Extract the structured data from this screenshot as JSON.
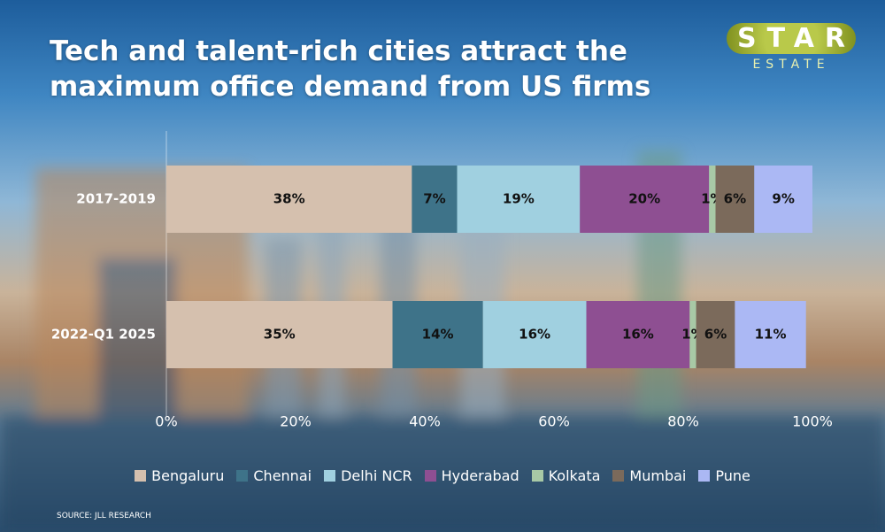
{
  "chart_data": {
    "type": "stacked_barh",
    "title": "Tech and talent-rich cities attract the maximum office demand from US firms",
    "logo": {
      "top": "STAR",
      "bottom": "ESTATE"
    },
    "source": "SOURCE: JLL RESEARCH",
    "categories": [
      "2017-2019",
      "2022-Q1 2025"
    ],
    "series": [
      {
        "name": "Bengaluru",
        "color": "#d5c0ae",
        "values": [
          38,
          35
        ],
        "value_labels": [
          "38%",
          "35%"
        ]
      },
      {
        "name": "Chennai",
        "color": "#3e7389",
        "values": [
          7,
          14
        ],
        "value_labels": [
          "7%",
          "14%"
        ]
      },
      {
        "name": "Delhi NCR",
        "color": "#a0d0e0",
        "values": [
          19,
          16
        ],
        "value_labels": [
          "19%",
          "16%"
        ]
      },
      {
        "name": "Hyderabad",
        "color": "#8e4f92",
        "values": [
          20,
          16
        ],
        "value_labels": [
          "20%",
          "16%"
        ]
      },
      {
        "name": "Kolkata",
        "color": "#a8c9a6",
        "values": [
          1,
          1
        ],
        "value_labels": [
          "1%",
          "1%"
        ]
      },
      {
        "name": "Mumbai",
        "color": "#7b6a5b",
        "values": [
          6,
          6
        ],
        "value_labels": [
          "6%",
          "6%"
        ]
      },
      {
        "name": "Pune",
        "color": "#abb8f4",
        "values": [
          9,
          11
        ],
        "value_labels": [
          "9%",
          "11%"
        ]
      }
    ],
    "xlim": [
      0,
      100
    ],
    "xticks": [
      {
        "value": 0,
        "label": "0%"
      },
      {
        "value": 20,
        "label": "20%"
      },
      {
        "value": 40,
        "label": "40%"
      },
      {
        "value": 60,
        "label": "60%"
      },
      {
        "value": 80,
        "label": "80%"
      },
      {
        "value": 100,
        "label": "100%"
      }
    ],
    "legend": "bottom"
  }
}
